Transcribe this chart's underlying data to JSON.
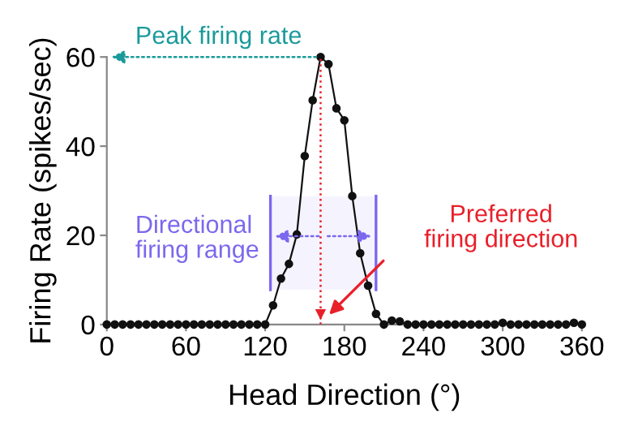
{
  "chart_data": {
    "type": "line",
    "xlabel": "Head Direction (°)",
    "ylabel": "Firing Rate (spikes/sec)",
    "x": [
      0,
      6,
      12,
      18,
      24,
      30,
      36,
      42,
      48,
      54,
      60,
      66,
      72,
      78,
      84,
      90,
      96,
      102,
      108,
      114,
      120,
      126,
      132,
      138,
      144,
      150,
      156,
      162,
      168,
      174,
      180,
      186,
      192,
      198,
      204,
      210,
      216,
      222,
      228,
      234,
      240,
      246,
      252,
      258,
      264,
      270,
      276,
      282,
      288,
      294,
      300,
      306,
      312,
      318,
      324,
      330,
      336,
      342,
      348,
      354,
      360
    ],
    "series": [
      {
        "color": "#111111",
        "values": [
          0,
          0,
          0,
          0,
          0,
          0,
          0,
          0,
          0,
          0,
          0,
          0,
          0,
          0,
          0,
          0,
          0,
          0,
          0,
          0,
          0,
          4.3,
          10.3,
          13.6,
          20.2,
          37.8,
          50.3,
          60,
          58.4,
          48.5,
          45.8,
          28.8,
          16,
          8.7,
          2.4,
          0,
          0.9,
          0.7,
          0,
          0,
          0,
          0,
          0,
          0,
          0,
          0,
          0,
          0,
          0,
          0,
          0.4,
          0,
          0,
          0,
          0,
          0,
          0,
          0,
          0,
          0.4,
          0
        ]
      }
    ],
    "marker": "circle",
    "line_style": "solid",
    "xlim": [
      0,
      360
    ],
    "ylim": [
      0,
      60
    ],
    "xticks": [
      0,
      60,
      120,
      180,
      240,
      300,
      360
    ],
    "yticks": [
      0,
      20,
      40,
      60
    ],
    "grid": false,
    "legend": false,
    "annotations": [
      {
        "text": "Peak firing rate",
        "x": 162,
        "y": 60
      },
      "Preferred firing direction"
    ],
    "ref_lines": [
      {
        "axis": "x",
        "value": 162,
        "color": "#e8202a",
        "line_style": "dotted"
      }
    ],
    "bands": [
      {
        "axis": "x",
        "from": 124,
        "to": 204,
        "label": "Directional firing range",
        "color": "#7b68ee"
      }
    ]
  }
}
